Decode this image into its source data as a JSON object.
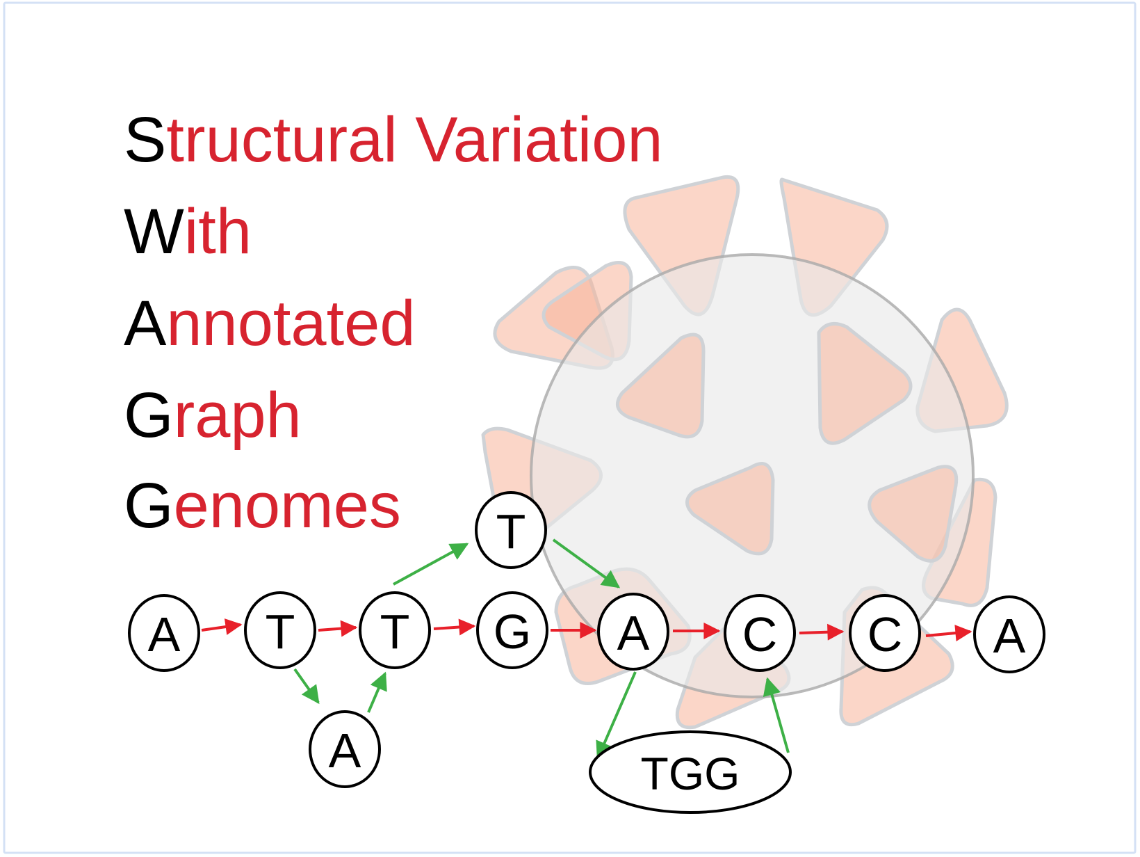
{
  "title": {
    "lines": [
      {
        "first": "S",
        "rest": "tructural Variation"
      },
      {
        "first": "W",
        "rest": "ith"
      },
      {
        "first": "A",
        "rest": "nnotated"
      },
      {
        "first": "G",
        "rest": "raph"
      },
      {
        "first": "G",
        "rest": "enomes"
      }
    ]
  },
  "graph": {
    "nodes": [
      {
        "id": "n1",
        "label": "A"
      },
      {
        "id": "n2",
        "label": "T"
      },
      {
        "id": "n3",
        "label": "T"
      },
      {
        "id": "n4",
        "label": "G"
      },
      {
        "id": "n5",
        "label": "A"
      },
      {
        "id": "n6",
        "label": "C"
      },
      {
        "id": "n7",
        "label": "C"
      },
      {
        "id": "n8",
        "label": "A"
      },
      {
        "id": "ins_a",
        "label": "A"
      },
      {
        "id": "ins_t",
        "label": "T"
      },
      {
        "id": "ins_tgg",
        "label": "TGG"
      }
    ],
    "reference_edges": [
      [
        "n1",
        "n2"
      ],
      [
        "n2",
        "n3"
      ],
      [
        "n3",
        "n4"
      ],
      [
        "n4",
        "n5"
      ],
      [
        "n5",
        "n6"
      ],
      [
        "n6",
        "n7"
      ],
      [
        "n7",
        "n8"
      ]
    ],
    "variant_edges": [
      [
        "n2",
        "ins_a"
      ],
      [
        "ins_a",
        "n3"
      ],
      [
        "n3",
        "ins_t"
      ],
      [
        "ins_t",
        "n5"
      ],
      [
        "n5",
        "ins_tgg"
      ],
      [
        "ins_tgg",
        "n6"
      ]
    ]
  },
  "colors": {
    "title_initial": "#000000",
    "title_rest": "#d7232f",
    "reference_edge": "#e8202a",
    "variant_edge": "#3db046",
    "virus_spike": "#f7b59a",
    "virus_body": "#e8e8e8"
  },
  "icons": [
    "virus-icon"
  ]
}
